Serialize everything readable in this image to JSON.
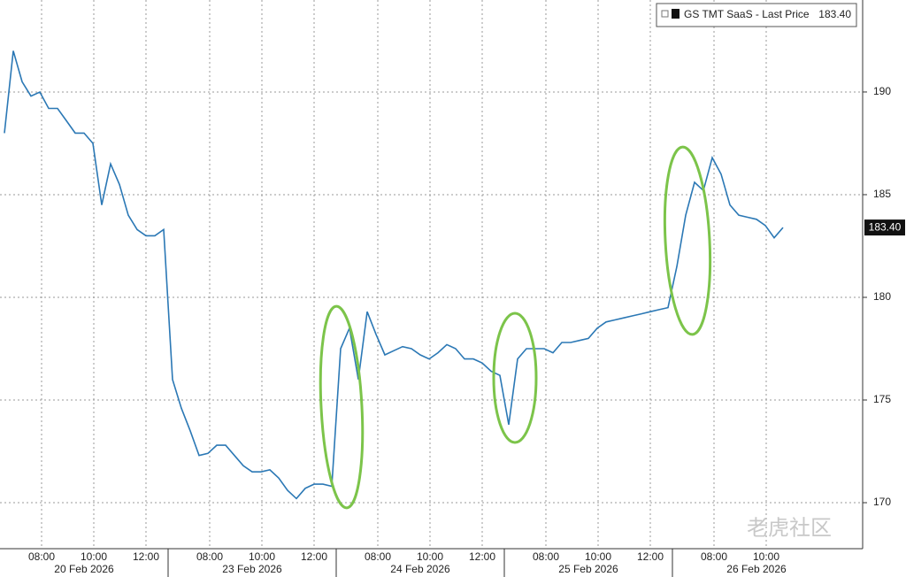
{
  "chart_data": {
    "type": "line",
    "series_name": "GS TMT SaaS - Last Price",
    "last_price": {
      "value": 183.4,
      "label": "183.40"
    },
    "color": "#2b78b5",
    "ylim": [
      167.76,
      194.48
    ],
    "yticks": [
      170,
      175,
      180,
      185,
      190
    ],
    "grid": true,
    "days": [
      {
        "label": "20 Feb 2026",
        "times": [
          "08:00",
          "10:00",
          "12:00"
        ],
        "values": [
          188,
          192,
          190.5,
          189.8,
          190,
          189.2,
          189.2,
          188.6,
          188,
          188,
          187.5,
          184.5,
          186.5,
          185.5,
          184,
          183.3,
          183,
          183,
          183.3
        ]
      },
      {
        "label": "23 Feb 2026",
        "times": [
          "08:00",
          "10:00",
          "12:00"
        ],
        "values": [
          176,
          174.6,
          173.5,
          172.3,
          172.4,
          172.8,
          172.8,
          172.3,
          171.8,
          171.5,
          171.5,
          171.6,
          171.2,
          170.6,
          170.2,
          170.7,
          170.9,
          170.9,
          170.8
        ]
      },
      {
        "label": "24 Feb 2026",
        "times": [
          "08:00",
          "10:00",
          "12:00"
        ],
        "values": [
          177.5,
          178.5,
          176,
          179.3,
          178.2,
          177.2,
          177.4,
          177.6,
          177.5,
          177.2,
          177,
          177.3,
          177.7,
          177.5,
          177,
          177,
          176.8,
          176.4,
          176.2
        ]
      },
      {
        "label": "25 Feb 2026",
        "times": [
          "08:00",
          "10:00",
          "12:00"
        ],
        "values": [
          173.8,
          177,
          177.5,
          177.5,
          177.5,
          177.3,
          177.8,
          177.8,
          177.9,
          178,
          178.5,
          178.8,
          178.9,
          179,
          179.1,
          179.2,
          179.3,
          179.4,
          179.5
        ]
      },
      {
        "label": "26 Feb 2026",
        "times": [
          "08:00",
          "10:00"
        ],
        "values": [
          181.5,
          184,
          185.6,
          185.2,
          186.8,
          186,
          184.5,
          184,
          183.9,
          183.8,
          183.5,
          182.9,
          183.4
        ]
      }
    ],
    "watermark": "老虎社区"
  }
}
